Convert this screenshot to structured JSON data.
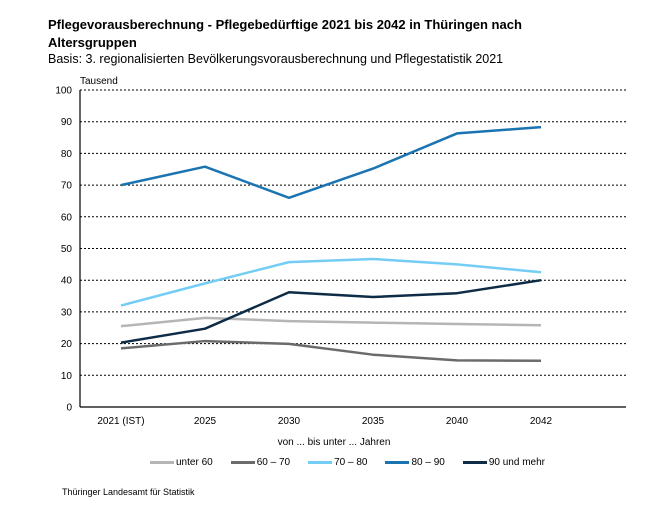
{
  "header": {
    "title": "Pflegevorausberechnung - Pflegebedürftige 2021 bis 2042 in Thüringen  nach Altersgruppen",
    "subtitle": "Basis: 3. regionalisierten Bevölkerungsvorausberechnung und Pflegestatistik 2021"
  },
  "chart_data": {
    "type": "line",
    "ylabel": "Tausend",
    "xlabel": "von ... bis unter ... Jahren",
    "categories": [
      "2021 (IST)",
      "2025",
      "2030",
      "2035",
      "2040",
      "2042"
    ],
    "ylim": [
      0,
      100
    ],
    "yticks": [
      0,
      10,
      20,
      30,
      40,
      50,
      60,
      70,
      80,
      90,
      100
    ],
    "grid": true,
    "legend": "bottom",
    "series": [
      {
        "name": "unter 60",
        "color": "#b5b5b5",
        "values": [
          25.5,
          28.1,
          27.1,
          26.6,
          26.2,
          25.8
        ]
      },
      {
        "name": "60 – 70",
        "color": "#6b6b6b",
        "values": [
          18.5,
          20.8,
          19.9,
          16.5,
          14.7,
          14.6
        ]
      },
      {
        "name": "70 – 80",
        "color": "#74cdf5",
        "values": [
          32.0,
          39.0,
          45.7,
          46.7,
          45.0,
          42.5
        ]
      },
      {
        "name": "80 – 90",
        "color": "#1b74b2",
        "values": [
          70.0,
          75.8,
          66.0,
          75.2,
          86.3,
          88.3
        ]
      },
      {
        "name": "90 und mehr",
        "color": "#0e2c46",
        "values": [
          20.3,
          24.7,
          36.2,
          34.7,
          35.9,
          40.0
        ]
      }
    ]
  },
  "footer": {
    "source": "Thüringer Landesamt für Statistik"
  }
}
